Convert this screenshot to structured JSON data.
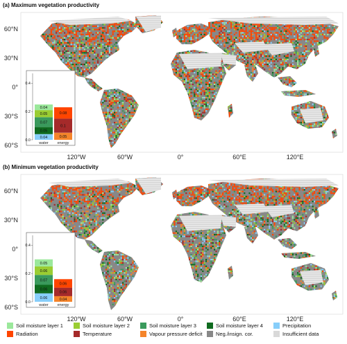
{
  "panels": [
    {
      "title": "(a) Maximum vegetation productivity",
      "lat_labels": [
        "60°N",
        "30°N",
        "0°",
        "30°S",
        "60°S"
      ],
      "lon_labels": [
        "120°W",
        "60°W",
        "0°",
        "60°E",
        "120°E"
      ],
      "inset": {
        "yticks": [
          "0.4",
          "0.2",
          "0.0"
        ],
        "bars": [
          {
            "name": "water",
            "segments": [
              {
                "var": "Precipitation",
                "value": 0.04
              },
              {
                "var": "Soil moisture layer 4",
                "value": 0.05
              },
              {
                "var": "Soil moisture layer 3",
                "value": 0.07
              },
              {
                "var": "Soil moisture layer 2",
                "value": 0.05
              },
              {
                "var": "Soil moisture layer 1",
                "value": 0.04
              }
            ]
          },
          {
            "name": "energy",
            "segments": [
              {
                "var": "Vapour pressure deficit",
                "value": 0.05
              },
              {
                "var": "Temperature",
                "value": 0.1
              },
              {
                "var": "Radiation",
                "value": 0.08
              }
            ]
          }
        ],
        "labels": {
          "water": [
            "0.04",
            "0.05",
            "0.07",
            "0.05",
            "0.04"
          ],
          "energy": [
            "0.05",
            "0.1",
            "0.08"
          ]
        }
      }
    },
    {
      "title": "(b) Minimum vegetation productivity",
      "lat_labels": [
        "60°N",
        "30°N",
        "0°",
        "30°S",
        "60°S"
      ],
      "lon_labels": [
        "120°W",
        "60°W",
        "0°",
        "60°E",
        "120°E"
      ],
      "inset": {
        "yticks": [
          "0.4",
          "0.2",
          "0.0"
        ],
        "bars": [
          {
            "name": "water",
            "segments": [
              {
                "var": "Precipitation",
                "value": 0.06
              },
              {
                "var": "Soil moisture layer 4",
                "value": 0.06
              },
              {
                "var": "Soil moisture layer 3",
                "value": 0.07
              },
              {
                "var": "Soil moisture layer 2",
                "value": 0.06
              },
              {
                "var": "Soil moisture layer 1",
                "value": 0.05
              }
            ]
          },
          {
            "name": "energy",
            "segments": [
              {
                "var": "Vapour pressure deficit",
                "value": 0.04
              },
              {
                "var": "Temperature",
                "value": 0.06
              },
              {
                "var": "Radiation",
                "value": 0.06
              }
            ]
          }
        ],
        "labels": {
          "water": [
            "0.06",
            "0.06",
            "0.07",
            "0.06",
            "0.05"
          ],
          "energy": [
            "0.04",
            "0.06",
            "0.06"
          ]
        }
      }
    }
  ],
  "legend": [
    {
      "label": "Soil moisture layer 1",
      "color": "#9be89b"
    },
    {
      "label": "Soil moisture layer 2",
      "color": "#9acd32"
    },
    {
      "label": "Soil moisture layer 3",
      "color": "#3a9a5c"
    },
    {
      "label": "Soil moisture layer 4",
      "color": "#0f6b1f"
    },
    {
      "label": "Precipitation",
      "color": "#87cefa"
    },
    {
      "label": "Radiation",
      "color": "#ff4500"
    },
    {
      "label": "Temperature",
      "color": "#a52a2a"
    },
    {
      "label": "Vapour pressure deficit",
      "color": "#f5842a"
    },
    {
      "label": "Neg./insign. cor.",
      "color": "#888888"
    },
    {
      "label": "Insufficient data",
      "color": "#d9d9d9"
    }
  ],
  "colors": {
    "Soil moisture layer 1": "#9be89b",
    "Soil moisture layer 2": "#9acd32",
    "Soil moisture layer 3": "#3a9a5c",
    "Soil moisture layer 4": "#0f6b1f",
    "Precipitation": "#87cefa",
    "Radiation": "#ff4500",
    "Temperature": "#a52a2a",
    "Vapour pressure deficit": "#f5842a",
    "Neg./insign. cor.": "#888888",
    "Insufficient data": "#d9d9d9"
  }
}
